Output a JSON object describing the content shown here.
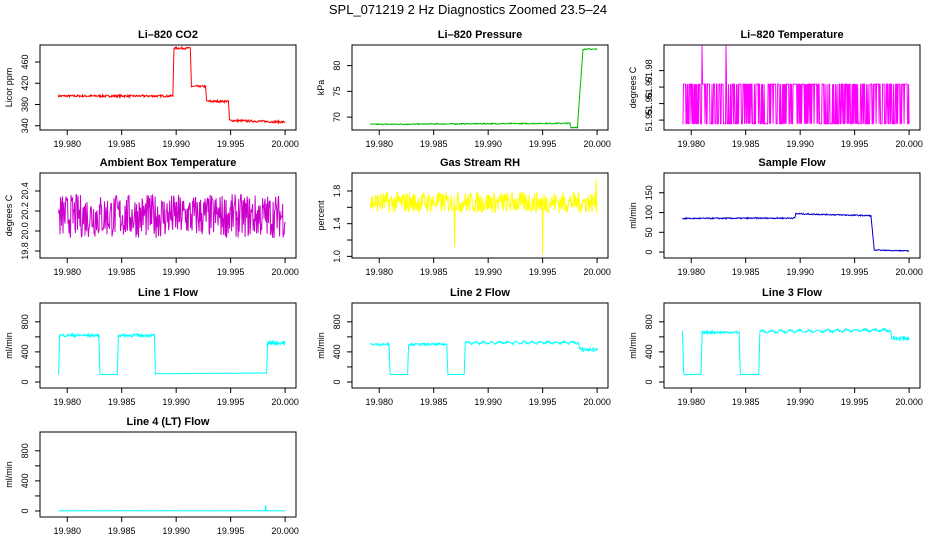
{
  "figure_title": "SPL_071219  2 Hz Diagnostics Zoomed 23.5–24",
  "x_ticks": [
    "19.980",
    "19.985",
    "19.990",
    "19.995",
    "20.000"
  ],
  "chart_data": [
    {
      "type": "line",
      "title": "Li–820 CO2",
      "ylabel": "Licor ppm",
      "color": "#ff0000",
      "xlim": [
        19.9775,
        20.001
      ],
      "ylim": [
        332,
        492
      ],
      "yticks": [
        340,
        380,
        420,
        460
      ],
      "ytick_labels": [
        "340",
        "380",
        "420",
        "460"
      ],
      "segments": [
        {
          "x": [
            19.9792,
            19.9897
          ],
          "y": [
            396,
            396
          ],
          "noise": 2
        },
        {
          "x": [
            19.9897,
            19.9898
          ],
          "y": [
            396,
            486
          ],
          "noise": 0
        },
        {
          "x": [
            19.9898,
            19.9913
          ],
          "y": [
            486,
            486
          ],
          "noise": 2
        },
        {
          "x": [
            19.9913,
            19.9914
          ],
          "y": [
            486,
            414
          ],
          "noise": 0
        },
        {
          "x": [
            19.9914,
            19.9927
          ],
          "y": [
            414,
            414
          ],
          "noise": 2
        },
        {
          "x": [
            19.9927,
            19.9928
          ],
          "y": [
            414,
            386
          ],
          "noise": 0
        },
        {
          "x": [
            19.9928,
            19.9948
          ],
          "y": [
            386,
            386
          ],
          "noise": 2
        },
        {
          "x": [
            19.9948,
            19.9949
          ],
          "y": [
            386,
            350
          ],
          "noise": 0
        },
        {
          "x": [
            19.9949,
            20.0
          ],
          "y": [
            350,
            347
          ],
          "noise": 2
        }
      ]
    },
    {
      "type": "line",
      "title": "Li–820 Pressure",
      "ylabel": "kPa",
      "color": "#00bb00",
      "xlim": [
        19.9775,
        20.001
      ],
      "ylim": [
        67.5,
        84
      ],
      "yticks": [
        70,
        75,
        80
      ],
      "ytick_labels": [
        "70",
        "75",
        "80"
      ],
      "segments": [
        {
          "x": [
            19.9792,
            19.9975
          ],
          "y": [
            68.6,
            68.8
          ],
          "noise": 0.1
        },
        {
          "x": [
            19.9975,
            19.9976
          ],
          "y": [
            68.8,
            68.0
          ],
          "noise": 0
        },
        {
          "x": [
            19.9976,
            19.9982
          ],
          "y": [
            68.0,
            68.0
          ],
          "noise": 0.1
        },
        {
          "x": [
            19.9982,
            19.9987
          ],
          "y": [
            68.0,
            83.2
          ],
          "noise": 0.5
        },
        {
          "x": [
            19.9987,
            20.0
          ],
          "y": [
            83.2,
            83.2
          ],
          "noise": 0.1
        }
      ]
    },
    {
      "type": "line",
      "title": "Li–820 Temperature",
      "ylabel": "degrees C",
      "color": "#ff00ff",
      "xlim": [
        19.9775,
        20.001
      ],
      "ylim": [
        51.944,
        51.9955
      ],
      "yticks": [
        51.95,
        51.96,
        51.97,
        51.98
      ],
      "ytick_labels": [
        "51.95",
        "51.96",
        "51.97",
        "51.98"
      ],
      "segments": [
        {
          "x": [
            19.9792,
            20.0
          ],
          "y": [
            51.9478,
            51.9478
          ],
          "noise": 0,
          "binary_high": 51.9718,
          "spikes": [
            [
              19.981,
              51.995
            ],
            [
              19.9832,
              51.995
            ]
          ]
        }
      ]
    },
    {
      "type": "line",
      "title": "Ambient Box Temperature",
      "ylabel": "degrees C",
      "color": "#cc00cc",
      "xlim": [
        19.9775,
        20.001
      ],
      "ylim": [
        19.73,
        20.58
      ],
      "yticks": [
        19.8,
        20.0,
        20.2,
        20.4
      ],
      "ytick_labels": [
        "19.8",
        "20.0",
        "20.2",
        "20.4"
      ],
      "segments": [
        {
          "x": [
            19.9792,
            20.0
          ],
          "y": [
            20.15,
            20.15
          ],
          "noise": 0.22
        }
      ]
    },
    {
      "type": "line",
      "title": "Gas Stream RH",
      "ylabel": "percent",
      "color": "#ffff00",
      "xlim": [
        19.9775,
        20.001
      ],
      "ylim": [
        0.98,
        2.02
      ],
      "yticks": [
        1.0,
        1.2,
        1.4,
        1.6,
        1.8
      ],
      "ytick_labels": [
        "1.0",
        "",
        "1.4",
        "",
        "1.8"
      ],
      "segments": [
        {
          "x": [
            19.9792,
            20.0
          ],
          "y": [
            1.66,
            1.66
          ],
          "noise": 0.13,
          "spikes": [
            [
              19.9869,
              1.12
            ],
            [
              19.995,
              1.02
            ],
            [
              19.9999,
              1.95
            ]
          ]
        }
      ]
    },
    {
      "type": "line",
      "title": "Sample Flow",
      "ylabel": "ml/min",
      "color": "#0000cc",
      "xlim": [
        19.9775,
        20.001
      ],
      "ylim": [
        -15,
        200
      ],
      "yticks": [
        0,
        50,
        100,
        150
      ],
      "ytick_labels": [
        "0",
        "50",
        "100",
        "150"
      ],
      "segments": [
        {
          "x": [
            19.9792,
            19.9895
          ],
          "y": [
            85,
            86
          ],
          "noise": 1.5
        },
        {
          "x": [
            19.9895,
            19.9896
          ],
          "y": [
            86,
            97
          ],
          "noise": 0
        },
        {
          "x": [
            19.9896,
            19.9965
          ],
          "y": [
            97,
            92
          ],
          "noise": 1.5
        },
        {
          "x": [
            19.9965,
            19.9968
          ],
          "y": [
            92,
            5
          ],
          "noise": 0
        },
        {
          "x": [
            19.9968,
            20.0
          ],
          "y": [
            5,
            3
          ],
          "noise": 1
        }
      ]
    },
    {
      "type": "line",
      "title": "Line 1 Flow",
      "ylabel": "ml/min",
      "color": "#00ffff",
      "xlim": [
        19.9775,
        20.001
      ],
      "ylim": [
        -80,
        1050
      ],
      "yticks": [
        0,
        200,
        400,
        600,
        800
      ],
      "ytick_labels": [
        "0",
        "",
        "400",
        "",
        "800"
      ],
      "segments": [
        {
          "x": [
            19.9792,
            19.9793
          ],
          "y": [
            100,
            600
          ],
          "noise": 0
        },
        {
          "x": [
            19.9793,
            19.9829
          ],
          "y": [
            620,
            620
          ],
          "noise": 20
        },
        {
          "x": [
            19.9829,
            19.983
          ],
          "y": [
            620,
            100
          ],
          "noise": 0
        },
        {
          "x": [
            19.983,
            19.9846
          ],
          "y": [
            100,
            100
          ],
          "noise": 2
        },
        {
          "x": [
            19.9846,
            19.9847
          ],
          "y": [
            100,
            620
          ],
          "noise": 0
        },
        {
          "x": [
            19.9847,
            19.988
          ],
          "y": [
            620,
            620
          ],
          "noise": 20
        },
        {
          "x": [
            19.988,
            19.9881
          ],
          "y": [
            620,
            100
          ],
          "noise": 0
        },
        {
          "x": [
            19.9881,
            19.9983
          ],
          "y": [
            110,
            120
          ],
          "noise": 2
        },
        {
          "x": [
            19.9983,
            19.9984
          ],
          "y": [
            120,
            520
          ],
          "noise": 0
        },
        {
          "x": [
            19.9984,
            20.0
          ],
          "y": [
            520,
            520
          ],
          "noise": 30
        }
      ]
    },
    {
      "type": "line",
      "title": "Line 2 Flow",
      "ylabel": "ml/min",
      "color": "#00ffff",
      "xlim": [
        19.9775,
        20.001
      ],
      "ylim": [
        -80,
        1050
      ],
      "yticks": [
        0,
        200,
        400,
        600,
        800
      ],
      "ytick_labels": [
        "0",
        "",
        "400",
        "",
        "800"
      ],
      "segments": [
        {
          "x": [
            19.9792,
            19.9809
          ],
          "y": [
            500,
            500
          ],
          "noise": 15
        },
        {
          "x": [
            19.9809,
            19.981
          ],
          "y": [
            500,
            100
          ],
          "noise": 0
        },
        {
          "x": [
            19.981,
            19.9826
          ],
          "y": [
            100,
            100
          ],
          "noise": 2
        },
        {
          "x": [
            19.9826,
            19.9827
          ],
          "y": [
            100,
            500
          ],
          "noise": 0
        },
        {
          "x": [
            19.9827,
            19.9862
          ],
          "y": [
            500,
            500
          ],
          "noise": 15
        },
        {
          "x": [
            19.9862,
            19.9863
          ],
          "y": [
            500,
            100
          ],
          "noise": 0
        },
        {
          "x": [
            19.9863,
            19.9878
          ],
          "y": [
            100,
            100
          ],
          "noise": 2
        },
        {
          "x": [
            19.9878,
            19.9879
          ],
          "y": [
            100,
            520
          ],
          "noise": 0
        },
        {
          "x": [
            19.9879,
            19.9983
          ],
          "y": [
            520,
            525
          ],
          "noise": 12,
          "wave": 12
        },
        {
          "x": [
            19.9983,
            19.9984
          ],
          "y": [
            525,
            430
          ],
          "noise": 0
        },
        {
          "x": [
            19.9984,
            20.0
          ],
          "y": [
            430,
            430
          ],
          "noise": 25
        }
      ]
    },
    {
      "type": "line",
      "title": "Line 3 Flow",
      "ylabel": "ml/min",
      "color": "#00ffff",
      "xlim": [
        19.9775,
        20.001
      ],
      "ylim": [
        -80,
        1050
      ],
      "yticks": [
        0,
        200,
        400,
        600,
        800
      ],
      "ytick_labels": [
        "0",
        "",
        "400",
        "",
        "800"
      ],
      "segments": [
        {
          "x": [
            19.9792,
            19.9793
          ],
          "y": [
            680,
            100
          ],
          "noise": 0
        },
        {
          "x": [
            19.9793,
            19.9809
          ],
          "y": [
            100,
            100
          ],
          "noise": 2
        },
        {
          "x": [
            19.9809,
            19.981
          ],
          "y": [
            100,
            660
          ],
          "noise": 0
        },
        {
          "x": [
            19.981,
            19.9844
          ],
          "y": [
            660,
            660
          ],
          "noise": 15
        },
        {
          "x": [
            19.9844,
            19.9845
          ],
          "y": [
            660,
            100
          ],
          "noise": 0
        },
        {
          "x": [
            19.9845,
            19.9862
          ],
          "y": [
            100,
            100
          ],
          "noise": 2
        },
        {
          "x": [
            19.9862,
            19.9863
          ],
          "y": [
            100,
            670
          ],
          "noise": 0
        },
        {
          "x": [
            19.9863,
            19.9983
          ],
          "y": [
            670,
            690
          ],
          "noise": 12,
          "wave": 14
        },
        {
          "x": [
            19.9983,
            19.9984
          ],
          "y": [
            690,
            580
          ],
          "noise": 0
        },
        {
          "x": [
            19.9984,
            20.0
          ],
          "y": [
            580,
            580
          ],
          "noise": 30
        }
      ]
    },
    {
      "type": "line",
      "title": "Line 4 (LT) Flow",
      "ylabel": "ml/min",
      "color": "#00ffff",
      "xlim": [
        19.9775,
        20.001
      ],
      "ylim": [
        -80,
        1050
      ],
      "yticks": [
        0,
        200,
        400,
        600,
        800
      ],
      "ytick_labels": [
        "0",
        "",
        "400",
        "",
        "800"
      ],
      "segments": [
        {
          "x": [
            19.9792,
            20.0
          ],
          "y": [
            2,
            2
          ],
          "noise": 1,
          "spikes": [
            [
              19.9982,
              80
            ]
          ]
        }
      ]
    }
  ]
}
